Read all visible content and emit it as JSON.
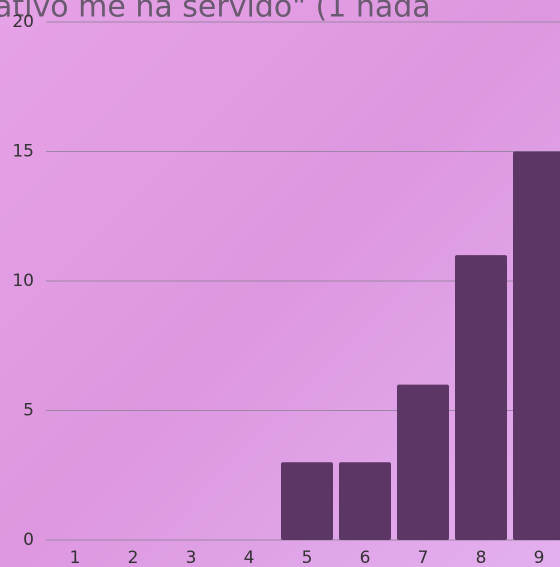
{
  "chart_data": {
    "type": "bar",
    "title": "ativo me ha servido\" (1 nada",
    "categories": [
      "1",
      "2",
      "3",
      "4",
      "5",
      "6",
      "7",
      "8",
      "9"
    ],
    "values": [
      0,
      0,
      0,
      0,
      3,
      3,
      6,
      11,
      15
    ],
    "color": "#5c3664",
    "ylim": [
      0,
      20
    ],
    "yticks": [
      0,
      5,
      10,
      15,
      20
    ],
    "grid": true
  }
}
